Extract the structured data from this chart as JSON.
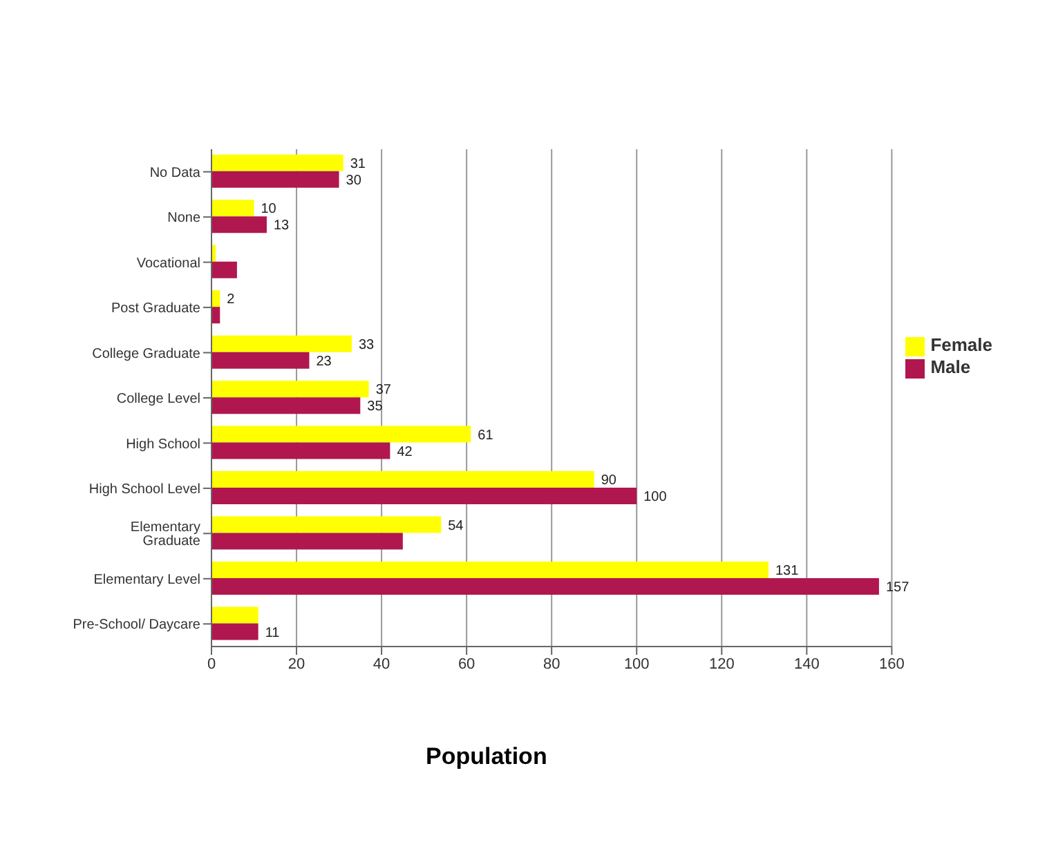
{
  "chart_data": {
    "type": "bar",
    "orientation": "horizontal",
    "xlabel": "Population",
    "categories": [
      "No Data",
      "None",
      "Vocational",
      "Post Graduate",
      "College Graduate",
      "College Level",
      "High School",
      "High School Level",
      "Elementary Graduate",
      "Elementary Level",
      "Pre-School/ Daycare"
    ],
    "series": [
      {
        "name": "Female",
        "color": "#ffff00",
        "values": [
          31,
          10,
          1,
          2,
          33,
          37,
          61,
          90,
          54,
          131,
          11
        ],
        "value_labels": [
          "31",
          "10",
          null,
          "2",
          "33",
          "37",
          "61",
          "90",
          "54",
          "131",
          null
        ]
      },
      {
        "name": "Male",
        "color": "#b0174f",
        "values": [
          30,
          13,
          6,
          2,
          23,
          35,
          42,
          100,
          45,
          157,
          11
        ],
        "value_labels": [
          "30",
          "13",
          null,
          null,
          "23",
          "35",
          "42",
          "100",
          null,
          "157",
          "11"
        ]
      }
    ],
    "xlim": [
      0,
      160
    ],
    "xticks": [
      0,
      20,
      40,
      60,
      80,
      100,
      120,
      140,
      160
    ],
    "grid": "x",
    "legend": "right"
  }
}
